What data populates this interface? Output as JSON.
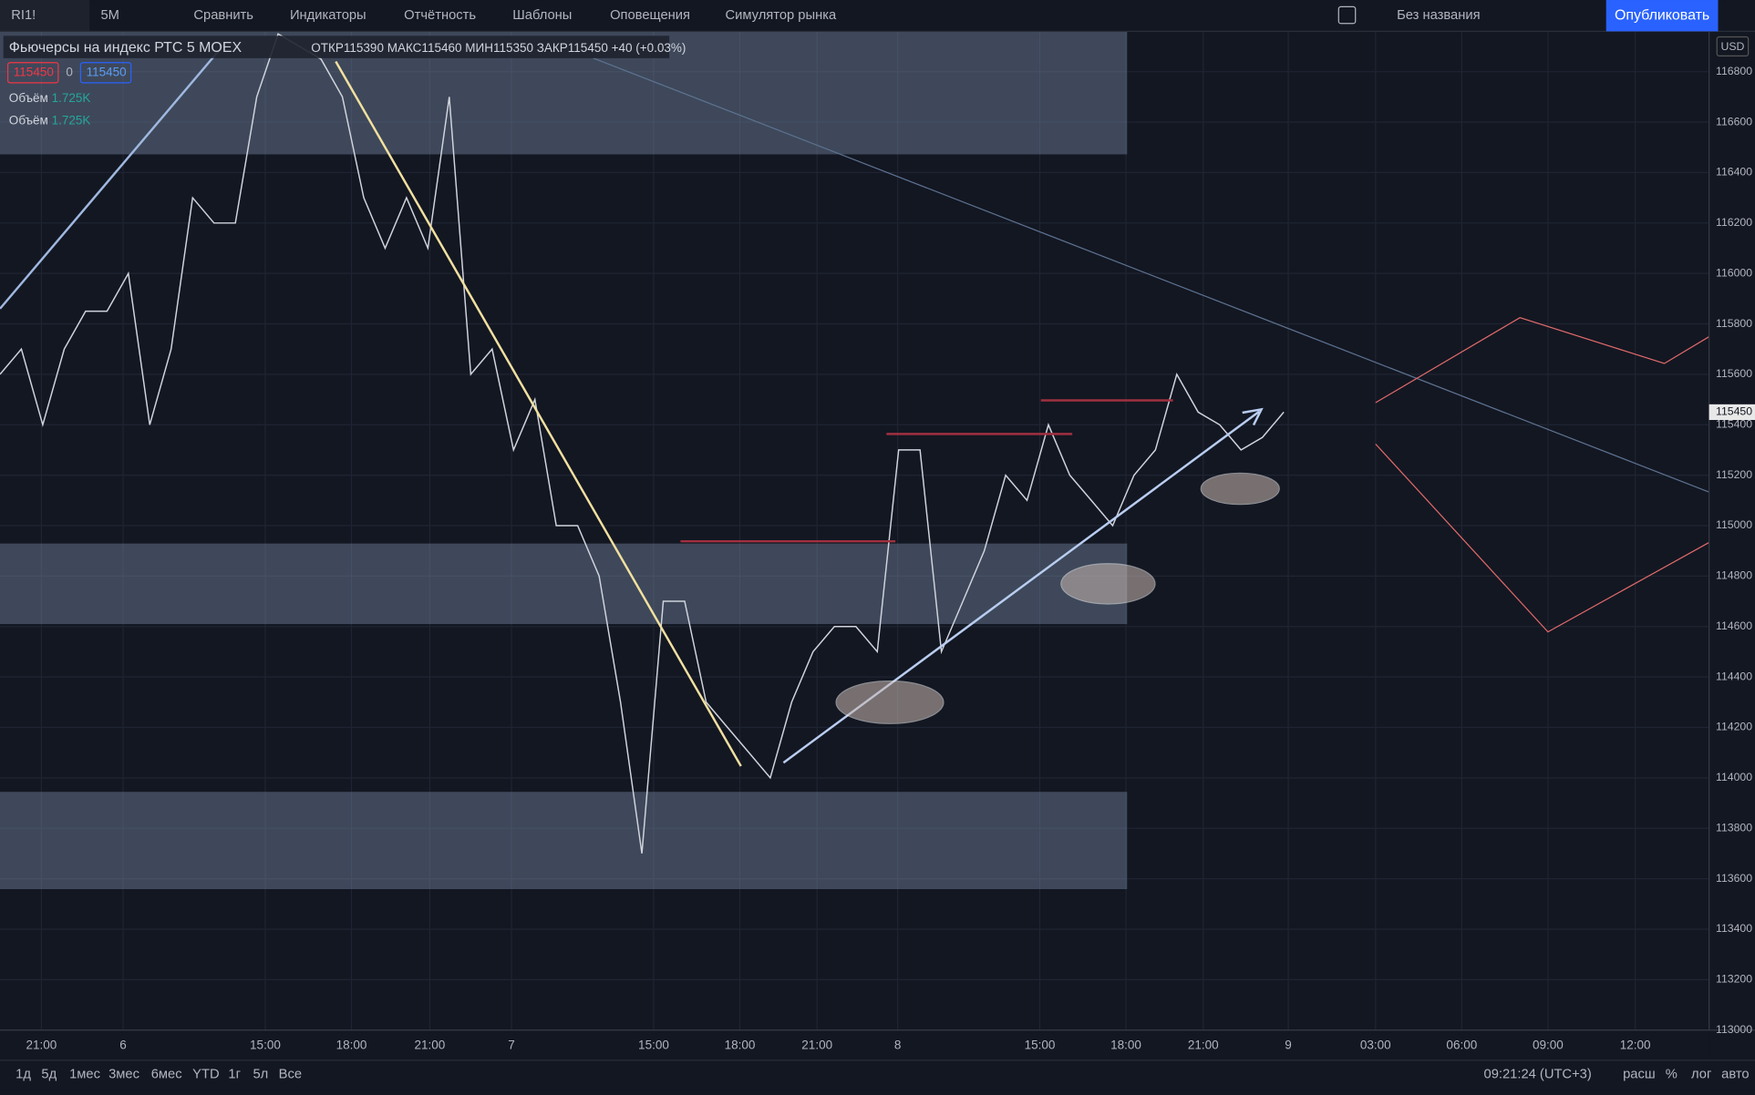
{
  "toolbar": {
    "symbol": "RI1!",
    "interval": "5M",
    "items": [
      "Сравнить",
      "Индикаторы",
      "Отчётность",
      "Шаблоны",
      "Оповещения",
      "Симулятор рынка"
    ],
    "layout_name": "Без названия",
    "publish": "Опубликовать"
  },
  "legend": {
    "title": "Фьючерсы на индекс РТС",
    "interval": "5",
    "exchange": "MOEX",
    "open_label": "ОТКР",
    "open": 115390,
    "high_label": "МАКС",
    "high": 115460,
    "low_label": "МИН",
    "low": 115350,
    "close_label": "ЗАКР",
    "close": 115450,
    "change": "+40 (+0.03%)",
    "bid": 115450,
    "spread": 0,
    "ask": 115450,
    "volume_label": "Объём",
    "volume": "1.725K"
  },
  "chart_data": {
    "type": "line",
    "series": [
      {
        "color": "#d1d4dc",
        "values": [
          115600,
          115700,
          115400,
          115700,
          115850,
          115850,
          116000,
          115400,
          115700,
          116300,
          116200,
          116200,
          116700,
          116950,
          116900,
          116850,
          116700,
          116300,
          116100,
          116300,
          116100,
          116700,
          115600,
          115700,
          115300,
          115500,
          115000,
          115000,
          114800,
          114300,
          113700,
          114700,
          114700,
          114300,
          114200,
          114100,
          114000,
          114300,
          114500,
          114600,
          114600,
          114500,
          115300,
          115300,
          114500,
          114700,
          114900,
          115200,
          115100,
          115400,
          115200,
          115100,
          115000,
          115200,
          115300,
          115600,
          115450,
          115400,
          115300,
          115350,
          115450
        ]
      }
    ],
    "ylim": [
      113000,
      116960
    ],
    "yticks": [
      113000,
      113200,
      113400,
      113600,
      113800,
      114000,
      114200,
      114400,
      114600,
      114800,
      115000,
      115200,
      115400,
      115600,
      115800,
      116000,
      116200,
      116400,
      116600,
      116800
    ],
    "time_labels": [
      "21:00",
      "6",
      "15:00",
      "18:00",
      "21:00",
      "7",
      "15:00",
      "18:00",
      "21:00",
      "8",
      "15:00",
      "18:00",
      "21:00",
      "9",
      "03:00",
      "06:00",
      "09:00",
      "12:00"
    ],
    "currency": "USD",
    "last_price": 115450,
    "grid": true
  },
  "footer": {
    "ranges": [
      "1д",
      "5д",
      "1мес",
      "3мес",
      "6мес",
      "YTD",
      "1г",
      "5л",
      "Все"
    ],
    "clock": "09:21:24 (UTC+3)",
    "options": [
      "расш",
      "%",
      "лог",
      "авто"
    ]
  }
}
